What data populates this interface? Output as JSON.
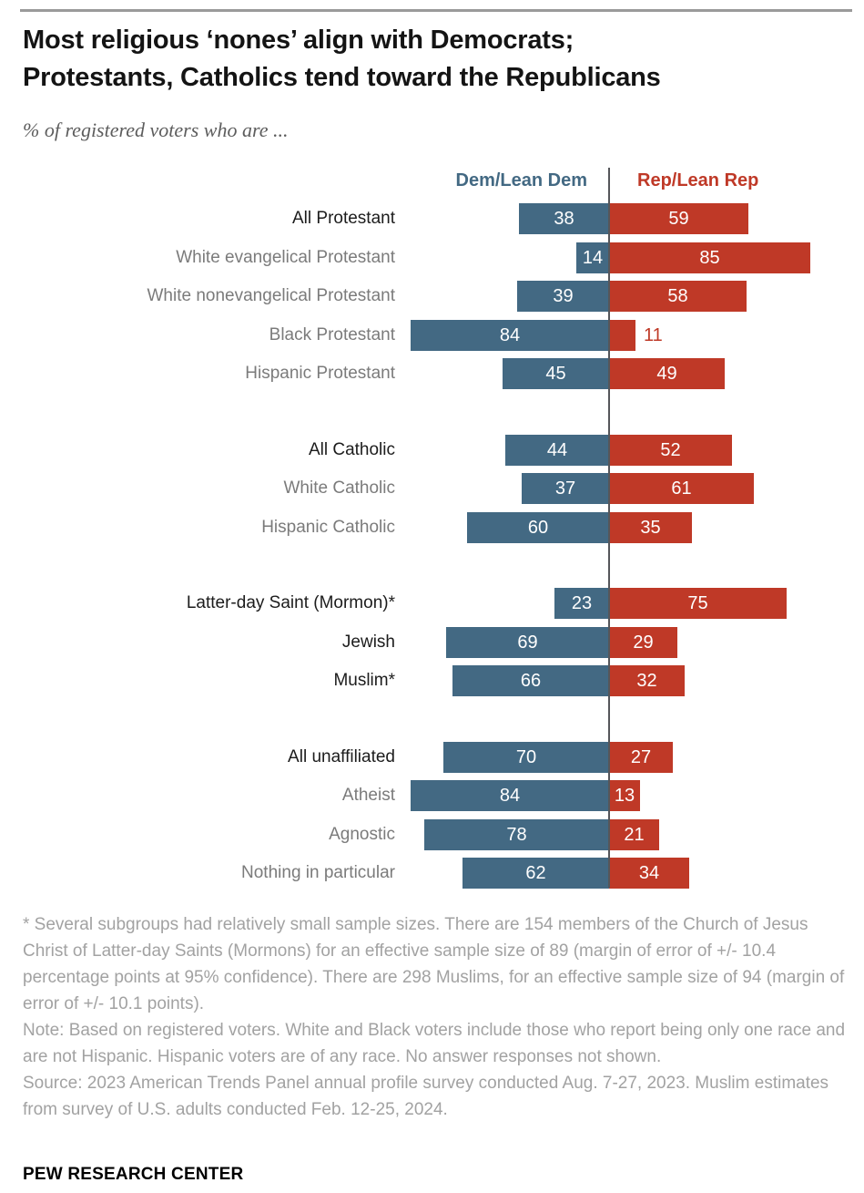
{
  "title": "Most religious ‘nones’ align with Democrats;\nProtestants, Catholics tend toward the Republicans",
  "subtitle": "% of registered voters who are ...",
  "legend": {
    "dem": "Dem/Lean Dem",
    "rep": "Rep/Lean Rep"
  },
  "colors": {
    "dem_blue": "#436983",
    "rep_red": "#bf3927",
    "axis_line": "#55565a",
    "category_gray": "#7b7b7b",
    "category_black": "#1c1c1c",
    "footnote_gray": "#a2a2a2"
  },
  "chart_data": {
    "type": "bar",
    "variant": "diverging-horizontal",
    "unit": "% of registered voters",
    "categories": [
      "All Protestant",
      "White evangelical Protestant",
      "White nonevangelical Protestant",
      "Black Protestant",
      "Hispanic Protestant",
      "All Catholic",
      "White Catholic",
      "Hispanic Catholic",
      "Latter-day Saint (Mormon)*",
      "Jewish",
      "Muslim*",
      "All unaffiliated",
      "Atheist",
      "Agnostic",
      "Nothing in particular"
    ],
    "series": [
      {
        "name": "Dem/Lean Dem",
        "color": "#436983",
        "values": [
          38,
          14,
          39,
          84,
          45,
          44,
          37,
          60,
          23,
          69,
          66,
          70,
          84,
          78,
          62
        ]
      },
      {
        "name": "Rep/Lean Rep",
        "color": "#bf3927",
        "values": [
          59,
          85,
          58,
          11,
          49,
          52,
          61,
          35,
          75,
          29,
          32,
          27,
          13,
          21,
          34
        ]
      }
    ],
    "group_breaks_after": [
      4,
      7,
      10
    ],
    "bold_categories": [
      "All Protestant",
      "All Catholic",
      "Latter-day Saint (Mormon)*",
      "Jewish",
      "Muslim*",
      "All unaffiliated"
    ],
    "outside_value_labels": [
      {
        "series": "Rep/Lean Rep",
        "category": "Black Protestant"
      }
    ],
    "axis": {
      "center_value": 0,
      "gridline": "center-only"
    },
    "xlim": [
      -100,
      100
    ],
    "legend_position": "top"
  },
  "footnotes": {
    "asterisk": "* Several subgroups had relatively small sample sizes. There are 154 members of the Church of Jesus Christ of Latter-day Saints (Mormons) for an effective sample size of 89 (margin of error of +/- 10.4 percentage points at 95% confidence). There are 298 Muslims, for an effective sample size of 94 (margin of error of +/- 10.1 points).",
    "note": "Note: Based on registered voters. White and Black voters include those who report being only one race and are not Hispanic. Hispanic voters are of any race. No answer responses not shown.",
    "source": "Source: 2023 American Trends Panel annual profile survey conducted Aug. 7-27, 2023. Muslim estimates from survey of U.S. adults conducted Feb. 12-25, 2024."
  },
  "brand": "PEW RESEARCH CENTER"
}
